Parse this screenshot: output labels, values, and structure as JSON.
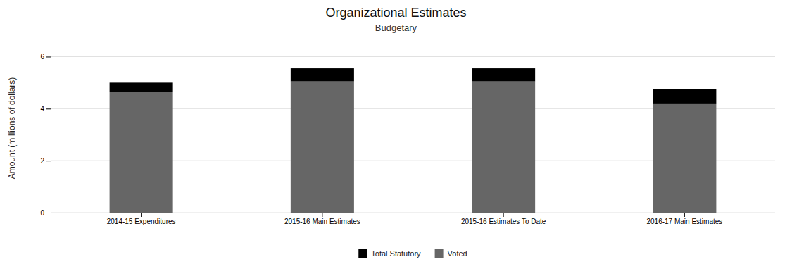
{
  "chart_data": {
    "type": "bar",
    "stacked": true,
    "title": "Organizational Estimates",
    "subtitle": "Budgetary",
    "ylabel": "Amount (millions of dollars)",
    "categories": [
      "2014-15 Expenditures",
      "2015-16 Main Estimates",
      "2015-16 Estimates To Date",
      "2016-17 Main Estimates"
    ],
    "series": [
      {
        "name": "Voted",
        "color": "#666666",
        "values": [
          4.65,
          5.05,
          5.05,
          4.2
        ]
      },
      {
        "name": "Total Statutory",
        "color": "#000000",
        "values": [
          0.35,
          0.5,
          0.5,
          0.55
        ]
      }
    ],
    "ylim": [
      0,
      6.5
    ],
    "yticks": [
      0,
      2,
      4,
      6
    ],
    "grid": true,
    "legend": "bottom"
  }
}
